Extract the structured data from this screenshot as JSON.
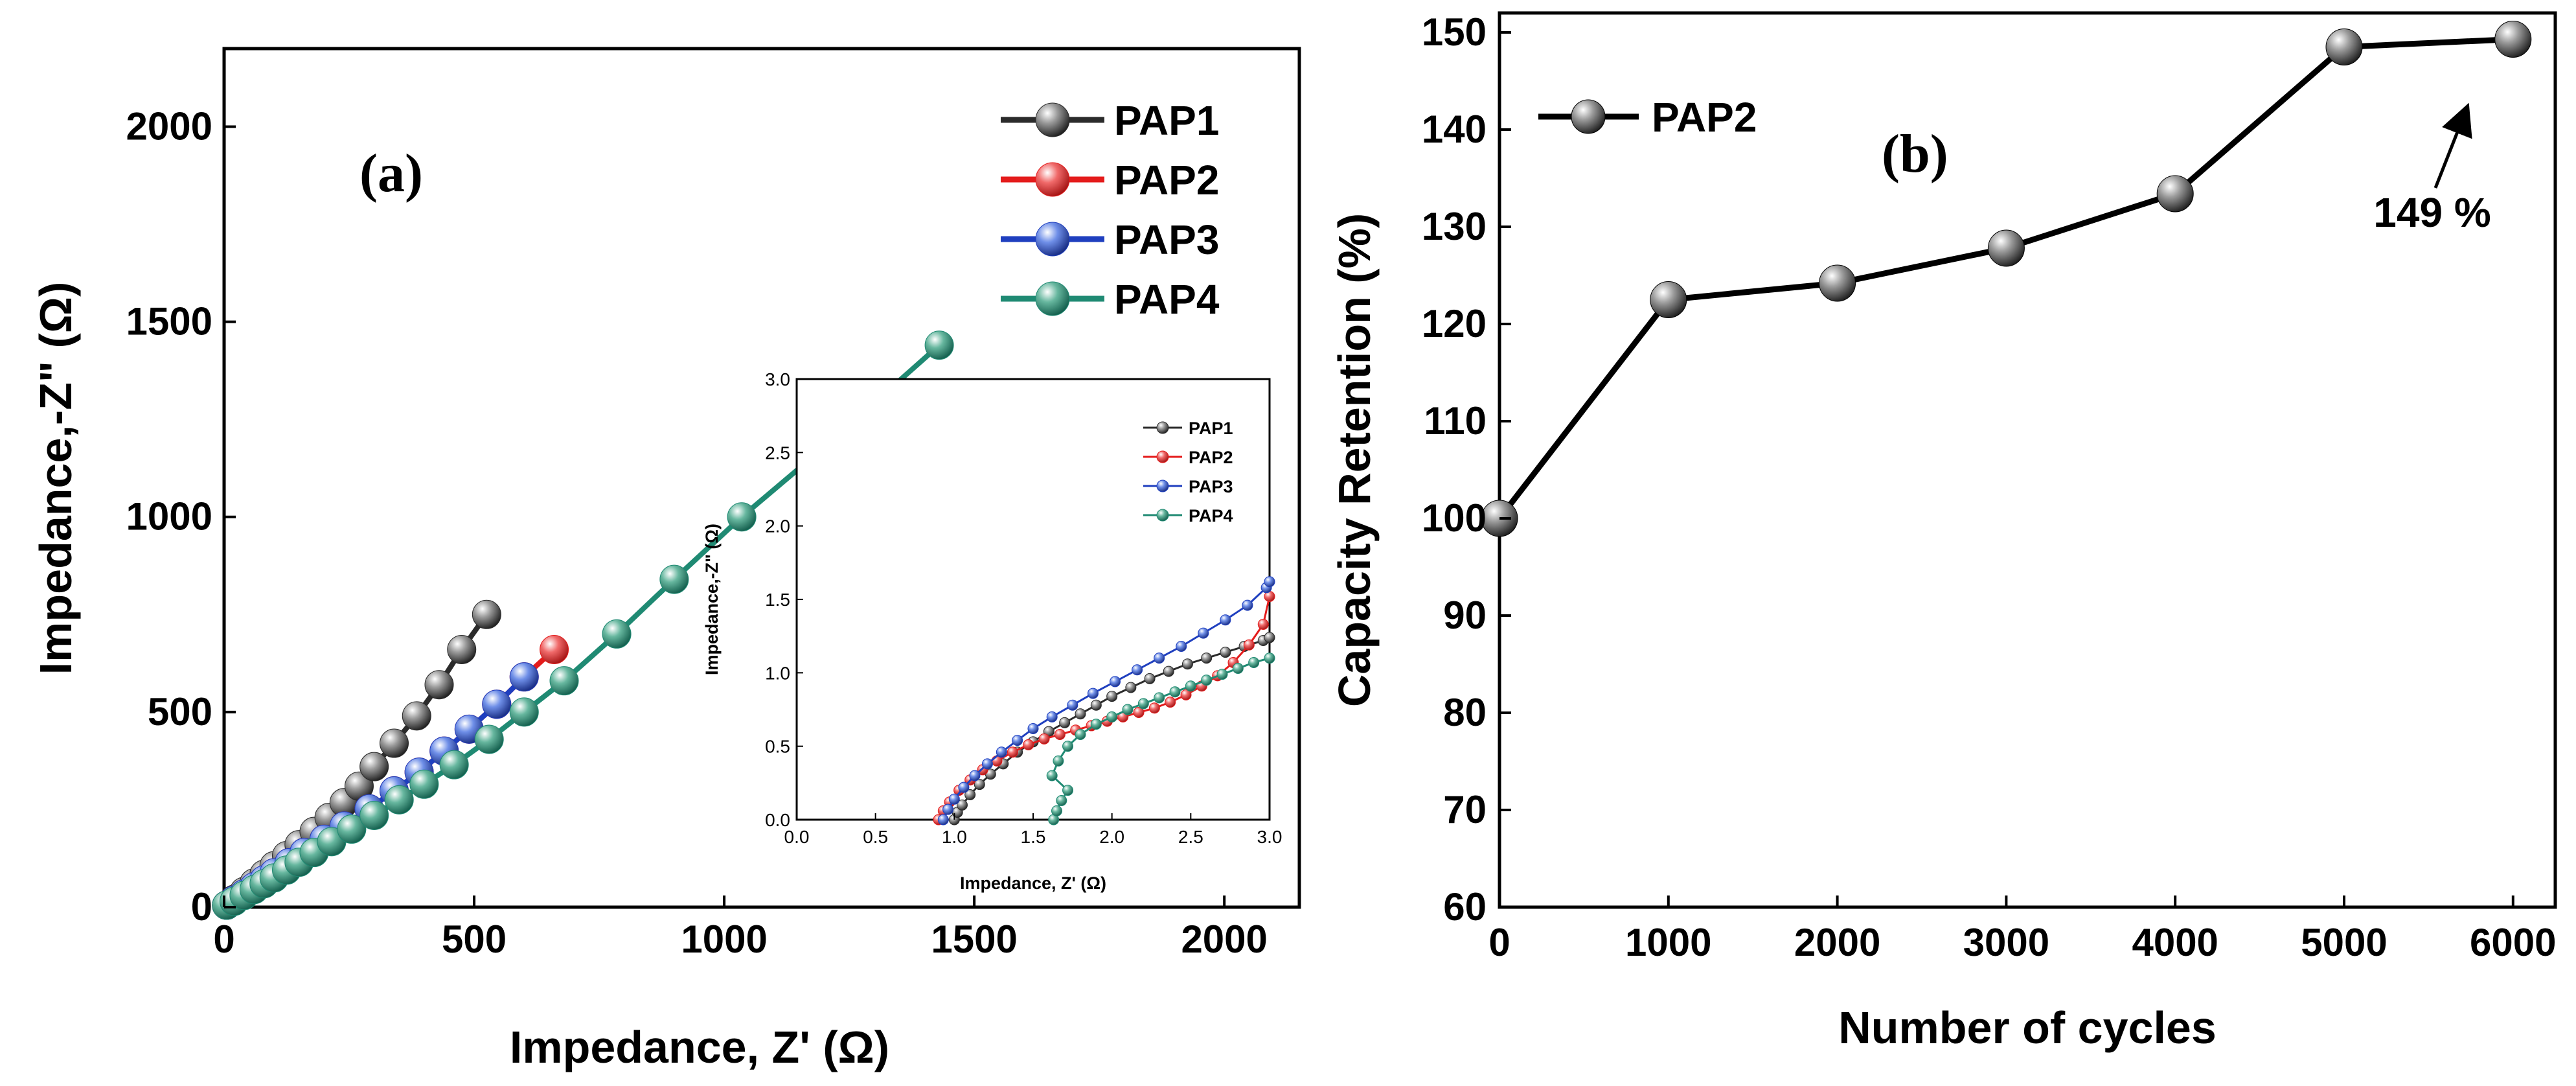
{
  "colors": {
    "PAP1": "#2b2b2b",
    "PAP2": "#e41b1b",
    "PAP3": "#1f3fbf",
    "PAP4": "#1f8a73"
  },
  "chart_data": [
    {
      "id": "a",
      "type": "line",
      "panel_label": "(a)",
      "xlabel": "Impedance, Z' (Ω)",
      "ylabel": "Impedance,-Z\" (Ω)",
      "xlim": [
        0,
        2150
      ],
      "ylim": [
        0,
        2200
      ],
      "xticks": [
        0,
        500,
        1000,
        1500,
        2000
      ],
      "yticks": [
        0,
        500,
        1000,
        1500,
        2000
      ],
      "legend_position": "top-right",
      "series": [
        {
          "name": "PAP1",
          "color_key": "PAP1",
          "points": [
            [
              5,
              5
            ],
            [
              20,
              20
            ],
            [
              40,
              40
            ],
            [
              60,
              62
            ],
            [
              80,
              84
            ],
            [
              100,
              106
            ],
            [
              125,
              132
            ],
            [
              150,
              160
            ],
            [
              180,
              194
            ],
            [
              210,
              230
            ],
            [
              240,
              268
            ],
            [
              270,
              310
            ],
            [
              300,
              360
            ],
            [
              340,
              420
            ],
            [
              385,
              490
            ],
            [
              430,
              570
            ],
            [
              475,
              660
            ],
            [
              525,
              750
            ]
          ]
        },
        {
          "name": "PAP2",
          "color_key": "PAP2",
          "points": [
            [
              5,
              5
            ],
            [
              20,
              18
            ],
            [
              40,
              34
            ],
            [
              60,
              52
            ],
            [
              80,
              70
            ],
            [
              100,
              88
            ],
            [
              130,
              114
            ],
            [
              160,
              140
            ],
            [
              200,
              174
            ],
            [
              240,
              208
            ],
            [
              290,
              252
            ],
            [
              340,
              298
            ],
            [
              390,
              346
            ],
            [
              440,
              400
            ],
            [
              490,
              456
            ],
            [
              545,
              520
            ],
            [
              600,
              590
            ],
            [
              660,
              660
            ]
          ]
        },
        {
          "name": "PAP3",
          "color_key": "PAP3",
          "points": [
            [
              5,
              5
            ],
            [
              20,
              18
            ],
            [
              40,
              34
            ],
            [
              60,
              52
            ],
            [
              80,
              70
            ],
            [
              100,
              88
            ],
            [
              130,
              114
            ],
            [
              160,
              140
            ],
            [
              200,
              174
            ],
            [
              240,
              208
            ],
            [
              290,
              252
            ],
            [
              340,
              298
            ],
            [
              390,
              346
            ],
            [
              440,
              400
            ],
            [
              490,
              456
            ],
            [
              545,
              520
            ],
            [
              600,
              590
            ]
          ]
        },
        {
          "name": "PAP4",
          "color_key": "PAP4",
          "points": [
            [
              5,
              5
            ],
            [
              20,
              15
            ],
            [
              40,
              30
            ],
            [
              60,
              45
            ],
            [
              80,
              60
            ],
            [
              100,
              75
            ],
            [
              125,
              95
            ],
            [
              150,
              115
            ],
            [
              180,
              140
            ],
            [
              215,
              168
            ],
            [
              255,
              200
            ],
            [
              300,
              235
            ],
            [
              350,
              275
            ],
            [
              400,
              315
            ],
            [
              460,
              365
            ],
            [
              530,
              430
            ],
            [
              600,
              500
            ],
            [
              680,
              580
            ],
            [
              785,
              700
            ],
            [
              900,
              840
            ],
            [
              1035,
              1000
            ],
            [
              1215,
              1195
            ],
            [
              1430,
              1440
            ]
          ]
        }
      ],
      "inset": {
        "xlabel": "Impedance, Z' (Ω)",
        "ylabel": "Impedance,-Z\" (Ω)",
        "xlim": [
          0,
          3
        ],
        "ylim": [
          0,
          3
        ],
        "xticks": [
          "0.0",
          "0.5",
          "1.0",
          "1.5",
          "2.0",
          "2.5",
          "3.0"
        ],
        "yticks": [
          "0.0",
          "0.5",
          "1.0",
          "1.5",
          "2.0",
          "2.5",
          "3.0"
        ],
        "series": [
          {
            "name": "PAP1",
            "color_key": "PAP1",
            "points": [
              [
                1.0,
                0.0
              ],
              [
                1.02,
                0.05
              ],
              [
                1.05,
                0.1
              ],
              [
                1.1,
                0.17
              ],
              [
                1.16,
                0.24
              ],
              [
                1.23,
                0.31
              ],
              [
                1.31,
                0.38
              ],
              [
                1.4,
                0.46
              ],
              [
                1.5,
                0.53
              ],
              [
                1.6,
                0.6
              ],
              [
                1.7,
                0.66
              ],
              [
                1.8,
                0.72
              ],
              [
                1.9,
                0.78
              ],
              [
                2.0,
                0.84
              ],
              [
                2.12,
                0.9
              ],
              [
                2.24,
                0.96
              ],
              [
                2.36,
                1.01
              ],
              [
                2.48,
                1.06
              ],
              [
                2.6,
                1.1
              ],
              [
                2.72,
                1.14
              ],
              [
                2.84,
                1.18
              ],
              [
                2.96,
                1.22
              ],
              [
                3.0,
                1.24
              ]
            ]
          },
          {
            "name": "PAP2",
            "color_key": "PAP2",
            "points": [
              [
                0.9,
                0.0
              ],
              [
                0.93,
                0.06
              ],
              [
                0.97,
                0.12
              ],
              [
                1.03,
                0.2
              ],
              [
                1.1,
                0.27
              ],
              [
                1.18,
                0.34
              ],
              [
                1.27,
                0.4
              ],
              [
                1.37,
                0.46
              ],
              [
                1.47,
                0.51
              ],
              [
                1.57,
                0.55
              ],
              [
                1.67,
                0.58
              ],
              [
                1.77,
                0.61
              ],
              [
                1.87,
                0.64
              ],
              [
                1.97,
                0.67
              ],
              [
                2.07,
                0.7
              ],
              [
                2.17,
                0.73
              ],
              [
                2.27,
                0.76
              ],
              [
                2.37,
                0.8
              ],
              [
                2.47,
                0.85
              ],
              [
                2.57,
                0.91
              ],
              [
                2.67,
                0.98
              ],
              [
                2.77,
                1.07
              ],
              [
                2.87,
                1.19
              ],
              [
                2.96,
                1.33
              ],
              [
                3.0,
                1.52
              ]
            ]
          },
          {
            "name": "PAP3",
            "color_key": "PAP3",
            "points": [
              [
                0.93,
                0.0
              ],
              [
                0.96,
                0.07
              ],
              [
                1.0,
                0.14
              ],
              [
                1.06,
                0.22
              ],
              [
                1.13,
                0.3
              ],
              [
                1.21,
                0.38
              ],
              [
                1.3,
                0.46
              ],
              [
                1.4,
                0.54
              ],
              [
                1.5,
                0.62
              ],
              [
                1.62,
                0.7
              ],
              [
                1.75,
                0.78
              ],
              [
                1.88,
                0.86
              ],
              [
                2.02,
                0.94
              ],
              [
                2.16,
                1.02
              ],
              [
                2.3,
                1.1
              ],
              [
                2.44,
                1.18
              ],
              [
                2.58,
                1.27
              ],
              [
                2.72,
                1.36
              ],
              [
                2.86,
                1.46
              ],
              [
                2.98,
                1.58
              ],
              [
                3.0,
                1.62
              ]
            ]
          },
          {
            "name": "PAP4",
            "color_key": "PAP4",
            "points": [
              [
                1.63,
                0.0
              ],
              [
                1.65,
                0.06
              ],
              [
                1.68,
                0.13
              ],
              [
                1.72,
                0.2
              ],
              [
                1.62,
                0.3
              ],
              [
                1.66,
                0.4
              ],
              [
                1.72,
                0.5
              ],
              [
                1.8,
                0.58
              ],
              [
                1.9,
                0.65
              ],
              [
                2.0,
                0.7
              ],
              [
                2.1,
                0.75
              ],
              [
                2.2,
                0.79
              ],
              [
                2.3,
                0.83
              ],
              [
                2.4,
                0.87
              ],
              [
                2.5,
                0.91
              ],
              [
                2.6,
                0.95
              ],
              [
                2.7,
                0.99
              ],
              [
                2.8,
                1.03
              ],
              [
                2.9,
                1.07
              ],
              [
                3.0,
                1.1
              ]
            ]
          }
        ]
      }
    },
    {
      "id": "b",
      "type": "line",
      "panel_label": "(b)",
      "xlabel": "Number of cycles",
      "ylabel": "Capacity Retention (%)",
      "xlim": [
        0,
        6250
      ],
      "ylim": [
        60,
        152
      ],
      "xticks": [
        0,
        1000,
        2000,
        3000,
        4000,
        5000,
        6000
      ],
      "yticks": [
        60,
        70,
        80,
        90,
        100,
        110,
        120,
        130,
        140,
        150
      ],
      "legend_position": "top-left",
      "series": [
        {
          "name": "PAP2",
          "color_key": "PAP1",
          "points": [
            [
              0,
              100
            ],
            [
              1000,
              122.5
            ],
            [
              2000,
              124.2
            ],
            [
              3000,
              127.8
            ],
            [
              4000,
              133.4
            ],
            [
              5000,
              148.5
            ],
            [
              6000,
              149.3
            ]
          ]
        }
      ],
      "annotation": {
        "text": "149 %",
        "x": 6000,
        "y": 149.3
      }
    }
  ]
}
